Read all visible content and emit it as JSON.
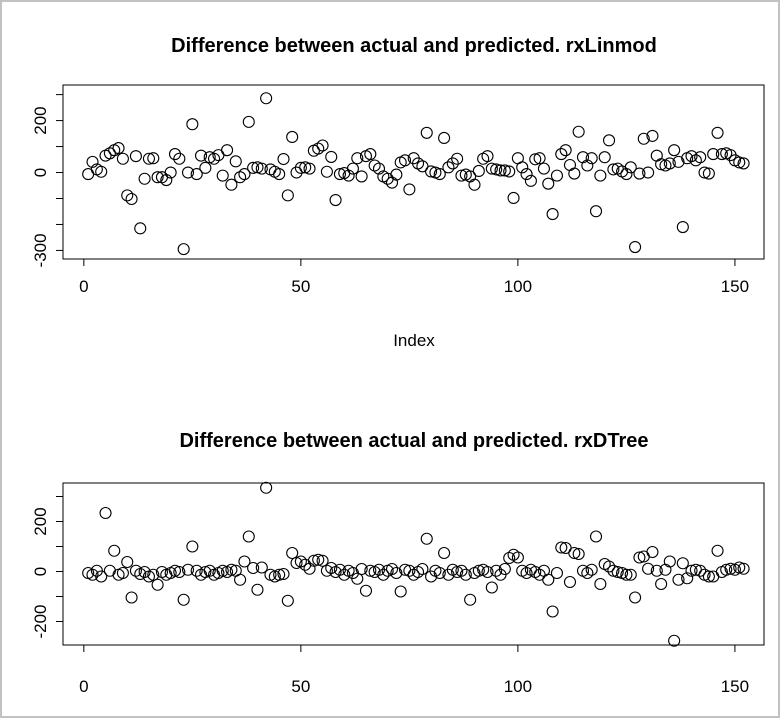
{
  "window": {
    "background": "#ffffff",
    "frame_color": "#c2c2c2",
    "plot_color": "#000000"
  },
  "chart_data": [
    {
      "type": "scatter",
      "title": "Difference between actual and predicted. rxLinmod",
      "xlabel": "Index",
      "ylabel": "",
      "marker": "open-circle",
      "grid": false,
      "legend": "none",
      "x_ticks": [
        0,
        50,
        100,
        150
      ],
      "y_ticks": [
        300,
        200,
        100,
        0,
        -100,
        -200,
        -300
      ],
      "y_tick_labels": [
        {
          "value": 200,
          "label": "200"
        },
        {
          "value": 0,
          "label": "0"
        },
        {
          "value": -300,
          "label": "-300"
        }
      ],
      "xlim": [
        -4.8,
        156.7
      ],
      "ylim": [
        -333,
        337
      ],
      "x_start": 1,
      "n_points": 152,
      "y": [
        -6,
        41,
        12,
        3,
        65,
        74,
        86,
        94,
        53,
        -88,
        -102,
        63,
        -215,
        -24,
        53,
        55,
        -18,
        -18,
        -29,
        0,
        71,
        53,
        -295,
        0,
        186,
        -6,
        65,
        18,
        59,
        53,
        67,
        -12,
        86,
        -47,
        43,
        -18,
        -6,
        195,
        18,
        20,
        15,
        286,
        12,
        3,
        -6,
        52,
        -88,
        137,
        0,
        18,
        20,
        15,
        84,
        92,
        104,
        3,
        60,
        -106,
        -6,
        -2,
        -12,
        15,
        55,
        -15,
        63,
        71,
        27,
        15,
        -15,
        -24,
        -39,
        -8,
        39,
        47,
        -65,
        55,
        35,
        24,
        153,
        4,
        0,
        -6,
        133,
        20,
        35,
        53,
        -12,
        -8,
        -15,
        -47,
        6,
        53,
        63,
        15,
        12,
        8,
        8,
        4,
        -98,
        55,
        20,
        -6,
        -32,
        51,
        55,
        15,
        -43,
        -160,
        -12,
        71,
        86,
        29,
        -4,
        157,
        59,
        27,
        55,
        -149,
        -12,
        59,
        124,
        12,
        15,
        4,
        -6,
        20,
        -287,
        -4,
        130,
        0,
        141,
        65,
        32,
        27,
        35,
        86,
        41,
        -210,
        55,
        63,
        47,
        59,
        0,
        -4,
        71,
        153,
        71,
        74,
        67,
        47,
        39,
        35
      ]
    },
    {
      "type": "scatter",
      "title": "Difference between actual and predicted. rxDTree",
      "xlabel": "",
      "ylabel": "",
      "marker": "open-circle",
      "grid": false,
      "legend": "none",
      "x_ticks": [
        0,
        50,
        100,
        150
      ],
      "y_ticks": [
        300,
        200,
        100,
        0,
        -100,
        -200
      ],
      "y_tick_labels": [
        {
          "value": 200,
          "label": "200"
        },
        {
          "value": 0,
          "label": "0"
        },
        {
          "value": -200,
          "label": "-200"
        }
      ],
      "xlim": [
        -4.8,
        156.7
      ],
      "ylim": [
        -294,
        354
      ],
      "x_start": 1,
      "n_points": 152,
      "y": [
        -6,
        -13,
        3,
        -20,
        234,
        3,
        83,
        -13,
        -6,
        38,
        -104,
        3,
        -10,
        -2,
        -20,
        -13,
        -53,
        -2,
        -13,
        -6,
        3,
        -2,
        -113,
        7,
        100,
        3,
        -13,
        -2,
        3,
        -13,
        -6,
        3,
        -2,
        7,
        3,
        -33,
        40,
        140,
        14,
        -73,
        16,
        335,
        -13,
        -20,
        -13,
        -10,
        -117,
        74,
        34,
        40,
        27,
        11,
        43,
        47,
        43,
        3,
        14,
        -2,
        7,
        -13,
        3,
        -6,
        -29,
        10,
        -77,
        3,
        -2,
        7,
        -13,
        3,
        10,
        -6,
        -80,
        7,
        3,
        -13,
        -2,
        10,
        131,
        -20,
        3,
        -6,
        74,
        -13,
        7,
        -2,
        3,
        -13,
        -113,
        -6,
        3,
        7,
        -2,
        -64,
        3,
        -13,
        10,
        54,
        67,
        56,
        3,
        -6,
        7,
        -2,
        -13,
        3,
        -33,
        -160,
        -6,
        96,
        94,
        -42,
        74,
        70,
        3,
        -6,
        7,
        140,
        -50,
        30,
        20,
        3,
        -2,
        -6,
        -13,
        -13,
        -104,
        56,
        60,
        11,
        78,
        3,
        -50,
        7,
        40,
        -277,
        -33,
        33,
        -27,
        3,
        7,
        3,
        -13,
        -20,
        -20,
        83,
        -2,
        7,
        11,
        7,
        16,
        11
      ]
    }
  ]
}
